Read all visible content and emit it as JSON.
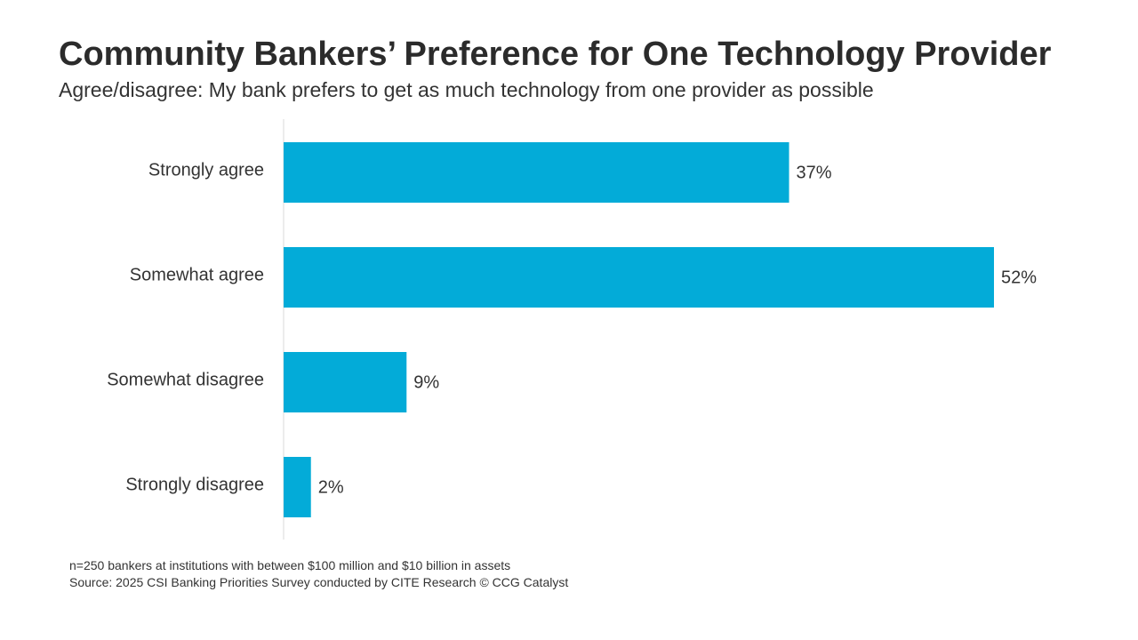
{
  "chart_data": {
    "type": "bar",
    "orientation": "horizontal",
    "title": "Community Bankers’ Preference for One Technology Provider",
    "subtitle": "Agree/disagree: My bank prefers to get as much technology from one provider as possible",
    "categories": [
      "Strongly agree",
      "Somewhat agree",
      "Somewhat disagree",
      "Strongly disagree"
    ],
    "values": [
      37,
      52,
      9,
      2
    ],
    "data_labels": [
      "37%",
      "52%",
      "9%",
      "2%"
    ],
    "unit": "%",
    "xlim": [
      0,
      52
    ],
    "grid": false,
    "legend": "none",
    "bar_color": "#03ABD8",
    "axis_color": "#D9D9D9"
  },
  "footnotes": {
    "sample": "n=250 bankers at institutions with between $100 million and $10 billion in assets",
    "source": "Source: 2025 CSI Banking Priorities Survey conducted by CITE Research © CCG Catalyst"
  }
}
